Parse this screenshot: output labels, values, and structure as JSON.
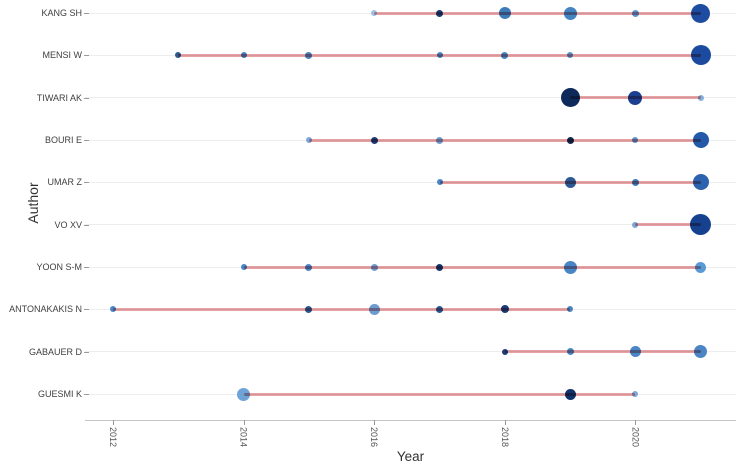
{
  "chart_data": {
    "type": "scatter",
    "subtype": "author-production-over-time-dot-timeline",
    "title": "",
    "xlabel": "Year",
    "ylabel": "Author",
    "x_ticks": [
      "2012",
      "2014",
      "2016",
      "2018",
      "2020"
    ],
    "x_tick_years": [
      2012,
      2014,
      2016,
      2018,
      2020
    ],
    "x_range": [
      2011.55,
      2021.55
    ],
    "grid": "horizontal-faint",
    "legend_position": "none",
    "line_color": "rgba(205,75,79,0.52)",
    "series": [
      {
        "name": "KANG SH",
        "line_span": [
          2016,
          2021
        ],
        "points": [
          {
            "x": 2016,
            "size": 6,
            "color": "#9ec1e4"
          },
          {
            "x": 2017,
            "size": 7,
            "color": "#1a3a70"
          },
          {
            "x": 2018,
            "size": 12,
            "color": "#3d7ab8"
          },
          {
            "x": 2019,
            "size": 13,
            "color": "#4484c2"
          },
          {
            "x": 2020,
            "size": 7,
            "color": "#5e93cc"
          },
          {
            "x": 2021,
            "size": 19,
            "color": "#1d4ca1"
          }
        ]
      },
      {
        "name": "MENSI W",
        "line_span": [
          2013,
          2021
        ],
        "points": [
          {
            "x": 2013,
            "size": 6,
            "color": "#30598f"
          },
          {
            "x": 2014,
            "size": 6,
            "color": "#4a80bd"
          },
          {
            "x": 2015,
            "size": 7,
            "color": "#4a80bd"
          },
          {
            "x": 2017,
            "size": 6,
            "color": "#4a86c5"
          },
          {
            "x": 2018,
            "size": 7,
            "color": "#4583c4"
          },
          {
            "x": 2019,
            "size": 6,
            "color": "#5d92cb"
          },
          {
            "x": 2021,
            "size": 20,
            "color": "#1b4a9e"
          }
        ]
      },
      {
        "name": "TIWARI AK",
        "line_span": [
          2019,
          2021
        ],
        "points": [
          {
            "x": 2019,
            "size": 19,
            "color": "#0e2a5a"
          },
          {
            "x": 2020,
            "size": 14,
            "color": "#1c3f8f"
          },
          {
            "x": 2021,
            "size": 6,
            "color": "#85afdb"
          }
        ]
      },
      {
        "name": "BOURI E",
        "line_span": [
          2015,
          2021
        ],
        "points": [
          {
            "x": 2015,
            "size": 6,
            "color": "#7fa8d8"
          },
          {
            "x": 2016,
            "size": 7,
            "color": "#1d3c78"
          },
          {
            "x": 2017,
            "size": 7,
            "color": "#6f9cd0"
          },
          {
            "x": 2019,
            "size": 7,
            "color": "#13294f"
          },
          {
            "x": 2020,
            "size": 6,
            "color": "#5e93cc"
          },
          {
            "x": 2021,
            "size": 16,
            "color": "#2458a8"
          }
        ]
      },
      {
        "name": "UMAR Z",
        "line_span": [
          2017,
          2021
        ],
        "points": [
          {
            "x": 2017,
            "size": 6,
            "color": "#4a86c5"
          },
          {
            "x": 2019,
            "size": 11,
            "color": "#2d5894"
          },
          {
            "x": 2020,
            "size": 7,
            "color": "#3f77b4"
          },
          {
            "x": 2021,
            "size": 16,
            "color": "#2d62ae"
          }
        ]
      },
      {
        "name": "VO XV",
        "line_span": [
          2020,
          2021
        ],
        "points": [
          {
            "x": 2020,
            "size": 6,
            "color": "#7fa8d8"
          },
          {
            "x": 2021,
            "size": 21,
            "color": "#15418f"
          }
        ]
      },
      {
        "name": "YOON S-M",
        "line_span": [
          2014,
          2021
        ],
        "points": [
          {
            "x": 2014,
            "size": 6,
            "color": "#4a86c5"
          },
          {
            "x": 2015,
            "size": 7,
            "color": "#4a86c5"
          },
          {
            "x": 2016,
            "size": 7,
            "color": "#6f9cd0"
          },
          {
            "x": 2017,
            "size": 7,
            "color": "#17356b"
          },
          {
            "x": 2019,
            "size": 13,
            "color": "#4a86c5"
          },
          {
            "x": 2021,
            "size": 11,
            "color": "#5b9bd5"
          }
        ]
      },
      {
        "name": "ANTONAKAKIS N",
        "line_span": [
          2012,
          2019
        ],
        "points": [
          {
            "x": 2012,
            "size": 6,
            "color": "#4a86c5"
          },
          {
            "x": 2015,
            "size": 7,
            "color": "#2d5894"
          },
          {
            "x": 2016,
            "size": 11,
            "color": "#6f9cd0"
          },
          {
            "x": 2017,
            "size": 7,
            "color": "#2d5894"
          },
          {
            "x": 2018,
            "size": 8,
            "color": "#1d3c78"
          },
          {
            "x": 2019,
            "size": 6,
            "color": "#4a86c5"
          }
        ]
      },
      {
        "name": "GABAUER D",
        "line_span": [
          2018,
          2021
        ],
        "points": [
          {
            "x": 2018,
            "size": 6,
            "color": "#1d3c78"
          },
          {
            "x": 2019,
            "size": 7,
            "color": "#4a86c5"
          },
          {
            "x": 2020,
            "size": 11,
            "color": "#4a86c5"
          },
          {
            "x": 2021,
            "size": 13,
            "color": "#4a86c5"
          }
        ]
      },
      {
        "name": "GUESMI K",
        "line_span": [
          2014,
          2020
        ],
        "points": [
          {
            "x": 2014,
            "size": 13,
            "color": "#6fa3d8"
          },
          {
            "x": 2019,
            "size": 11,
            "color": "#12316b"
          },
          {
            "x": 2020,
            "size": 6,
            "color": "#7fa8d8"
          }
        ]
      }
    ]
  }
}
